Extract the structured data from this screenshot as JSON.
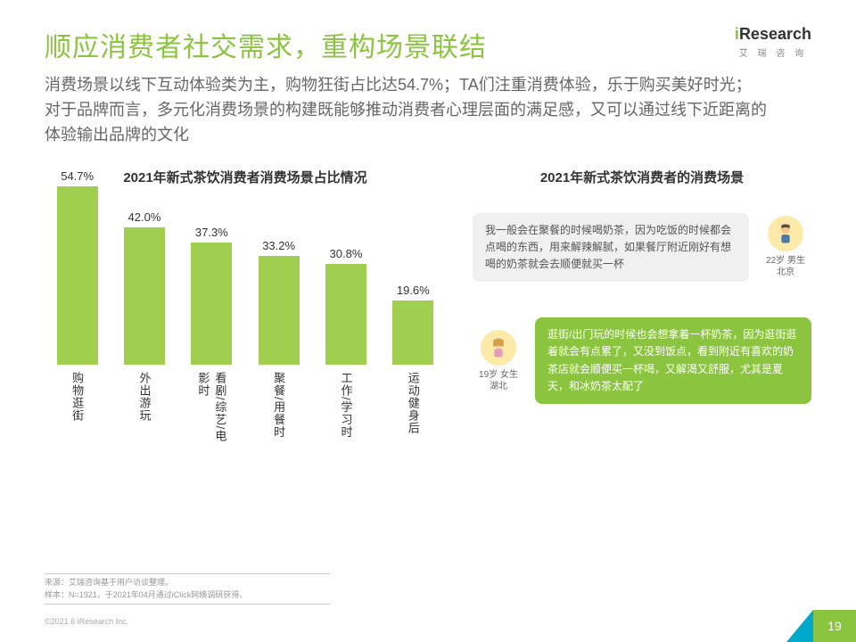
{
  "logo": {
    "brand": "Research",
    "letter": "i",
    "sub": "艾 瑞 咨 询"
  },
  "title": "顺应消费者社交需求，重构场景联结",
  "subtitle": "消费场景以线下互动体验类为主，购物狂街占比达54.7%；TA们注重消费体验，乐于购买美好时光；对于品牌而言，多元化消费场景的构建既能够推动消费者心理层面的满足感，又可以通过线下近距离的体验输出品牌的文化",
  "chart": {
    "title": "2021年新式茶饮消费者消费场景占比情况",
    "ymax": 54.7,
    "heightpx": 200,
    "bar_color": "#a0ce4e",
    "bars": [
      {
        "label": "购物逛街",
        "value": 54.7,
        "display": "54.7%"
      },
      {
        "label": "外出游玩",
        "value": 42.0,
        "display": "42.0%"
      },
      {
        "label": "看剧/综艺/电影时",
        "value": 37.3,
        "display": "37.3%"
      },
      {
        "label": "聚餐/用餐时",
        "value": 33.2,
        "display": "33.2%"
      },
      {
        "label": "工作/学习时",
        "value": 30.8,
        "display": "30.8%"
      },
      {
        "label": "运动健身后",
        "value": 19.6,
        "display": "19.6%"
      }
    ]
  },
  "right_title": "2021年新式茶饮消费者的消费场景",
  "quotes": [
    {
      "text": "我一般会在聚餐的时候喝奶茶，因为吃饭的时候都会点喝的东西，用来解辣解腻，如果餐厅附近刚好有想喝的奶茶就会去顺便就买一杯",
      "caption": "22岁 男生\n北京",
      "style": "grey",
      "side": "right"
    },
    {
      "text": "逛街/出门玩的时候也会想拿着一杯奶茶，因为逛街逛着就会有点累了，又没到饭点，看到附近有喜欢的奶茶店就会顺便买一杯喝，又解渴又舒服，尤其是夏天，和冰奶茶太配了",
      "caption": "19岁 女生\n湖北",
      "style": "green",
      "side": "left"
    }
  ],
  "footnote": {
    "l1": "来源：艾瑞咨询基于用户访谈整理。",
    "l2": "样本：N=1921，于2021年04月通过iClick网络调研获得。"
  },
  "copyright": "©2021.6 iResearch Inc.",
  "pagenum": "19"
}
